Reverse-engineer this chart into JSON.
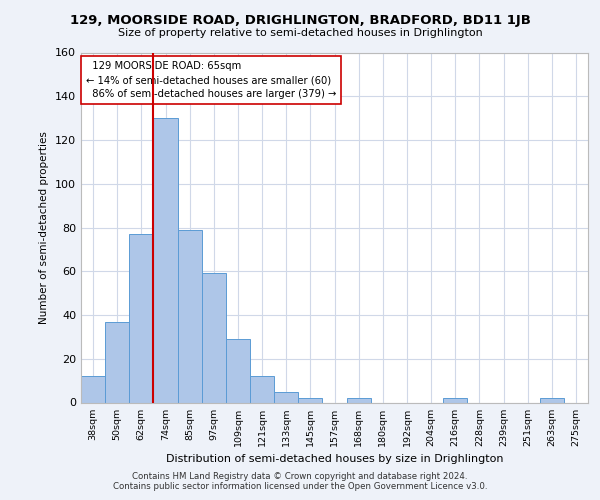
{
  "title1": "129, MOORSIDE ROAD, DRIGHLINGTON, BRADFORD, BD11 1JB",
  "title2": "Size of property relative to semi-detached houses in Drighlington",
  "xlabel": "Distribution of semi-detached houses by size in Drighlington",
  "ylabel": "Number of semi-detached properties",
  "footer1": "Contains HM Land Registry data © Crown copyright and database right 2024.",
  "footer2": "Contains public sector information licensed under the Open Government Licence v3.0.",
  "categories": [
    "38sqm",
    "50sqm",
    "62sqm",
    "74sqm",
    "85sqm",
    "97sqm",
    "109sqm",
    "121sqm",
    "133sqm",
    "145sqm",
    "157sqm",
    "168sqm",
    "180sqm",
    "192sqm",
    "204sqm",
    "216sqm",
    "228sqm",
    "239sqm",
    "251sqm",
    "263sqm",
    "275sqm"
  ],
  "values": [
    12,
    37,
    77,
    130,
    79,
    59,
    29,
    12,
    5,
    2,
    0,
    2,
    0,
    0,
    0,
    2,
    0,
    0,
    0,
    2,
    0
  ],
  "bar_color": "#aec6e8",
  "bar_edge_color": "#5b9bd5",
  "property_sqm": 65,
  "property_label": "129 MOORSIDE ROAD: 65sqm",
  "smaller_pct": "14%",
  "smaller_count": 60,
  "larger_pct": "86%",
  "larger_count": 379,
  "vline_color": "#cc0000",
  "annotation_box_color": "#cc0000",
  "ylim": [
    0,
    160
  ],
  "yticks": [
    0,
    20,
    40,
    60,
    80,
    100,
    120,
    140,
    160
  ],
  "background_color": "#eef2f9",
  "plot_background": "#ffffff",
  "grid_color": "#d0d8e8"
}
